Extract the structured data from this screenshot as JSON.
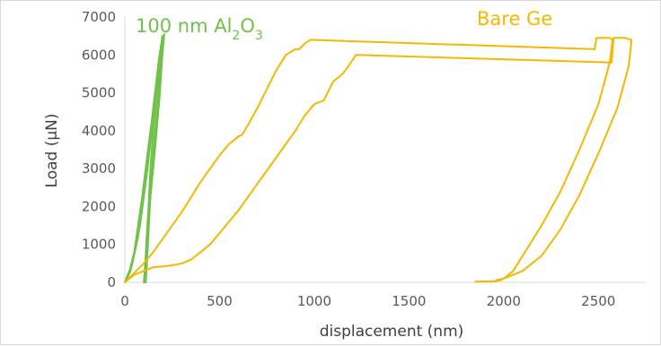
{
  "chart_data": {
    "type": "line",
    "xlabel": "displacement (nm)",
    "ylabel": "Load (μN)",
    "xlim": [
      0,
      2750
    ],
    "ylim": [
      0,
      7000
    ],
    "x_ticks": [
      "0",
      "500",
      "1000",
      "1500",
      "2000",
      "2500"
    ],
    "y_ticks": [
      "0",
      "1000",
      "2000",
      "3000",
      "4000",
      "5000",
      "6000",
      "7000"
    ],
    "grid": false,
    "legend": "none",
    "annotations": [
      {
        "text": "100 nm Al₂O₃",
        "color": "#70c14a"
      },
      {
        "text": "Bare Ge",
        "color": "#f5b800"
      }
    ],
    "colors": {
      "al2o3": "#70c14a",
      "ge": "#f5b800",
      "axis": "#d9d9d9"
    },
    "series": [
      {
        "group": "al2o3",
        "x": [
          0,
          40,
          80,
          120,
          160,
          190,
          205,
          190,
          172,
          155,
          140,
          130,
          122,
          115,
          110
        ],
        "y": [
          0,
          500,
          1500,
          3000,
          4800,
          6000,
          6500,
          5800,
          4700,
          3700,
          2700,
          1800,
          1000,
          400,
          0
        ]
      },
      {
        "group": "al2o3",
        "x": [
          0,
          30,
          70,
          110,
          150,
          180,
          198,
          185,
          168,
          150,
          135,
          125,
          115,
          108,
          100
        ],
        "y": [
          0,
          300,
          1200,
          2800,
          4600,
          5900,
          6500,
          5900,
          5000,
          4000,
          3000,
          2000,
          1200,
          500,
          0
        ]
      },
      {
        "group": "al2o3",
        "x": [
          0,
          20,
          50,
          90,
          130,
          170,
          195,
          208,
          198,
          185,
          168,
          150,
          130,
          115,
          105
        ],
        "y": [
          0,
          200,
          800,
          2200,
          3800,
          5200,
          6200,
          6550,
          6000,
          5000,
          4000,
          3000,
          2000,
          1000,
          0
        ]
      },
      {
        "group": "ge",
        "x": [
          0,
          50,
          100,
          150,
          200,
          250,
          300,
          350,
          400,
          450,
          500,
          550,
          600,
          620,
          650,
          700,
          750,
          800,
          850,
          900,
          920,
          950,
          980,
          2480,
          2490,
          2560,
          2575,
          2560,
          2500,
          2400,
          2300,
          2200,
          2100,
          2050,
          2000,
          1980,
          1950,
          1850
        ],
        "y": [
          0,
          250,
          500,
          800,
          1150,
          1500,
          1850,
          2250,
          2650,
          3000,
          3350,
          3650,
          3850,
          3900,
          4150,
          4600,
          5100,
          5600,
          6000,
          6150,
          6150,
          6300,
          6400,
          6150,
          6450,
          6450,
          6400,
          5800,
          4700,
          3500,
          2400,
          1500,
          700,
          300,
          100,
          50,
          30,
          20
        ]
      },
      {
        "group": "ge",
        "x": [
          0,
          50,
          100,
          150,
          200,
          250,
          300,
          350,
          400,
          450,
          500,
          600,
          700,
          800,
          900,
          950,
          1000,
          1050,
          1100,
          1150,
          1180,
          1220,
          2570,
          2580,
          2640,
          2675,
          2660,
          2600,
          2500,
          2400,
          2300,
          2200,
          2100,
          2000,
          1960
        ],
        "y": [
          0,
          200,
          300,
          400,
          420,
          450,
          500,
          600,
          800,
          1000,
          1300,
          1900,
          2600,
          3300,
          4000,
          4400,
          4700,
          4800,
          5300,
          5500,
          5700,
          6000,
          5800,
          6450,
          6450,
          6400,
          5700,
          4600,
          3400,
          2300,
          1400,
          700,
          300,
          100,
          60
        ]
      }
    ]
  }
}
